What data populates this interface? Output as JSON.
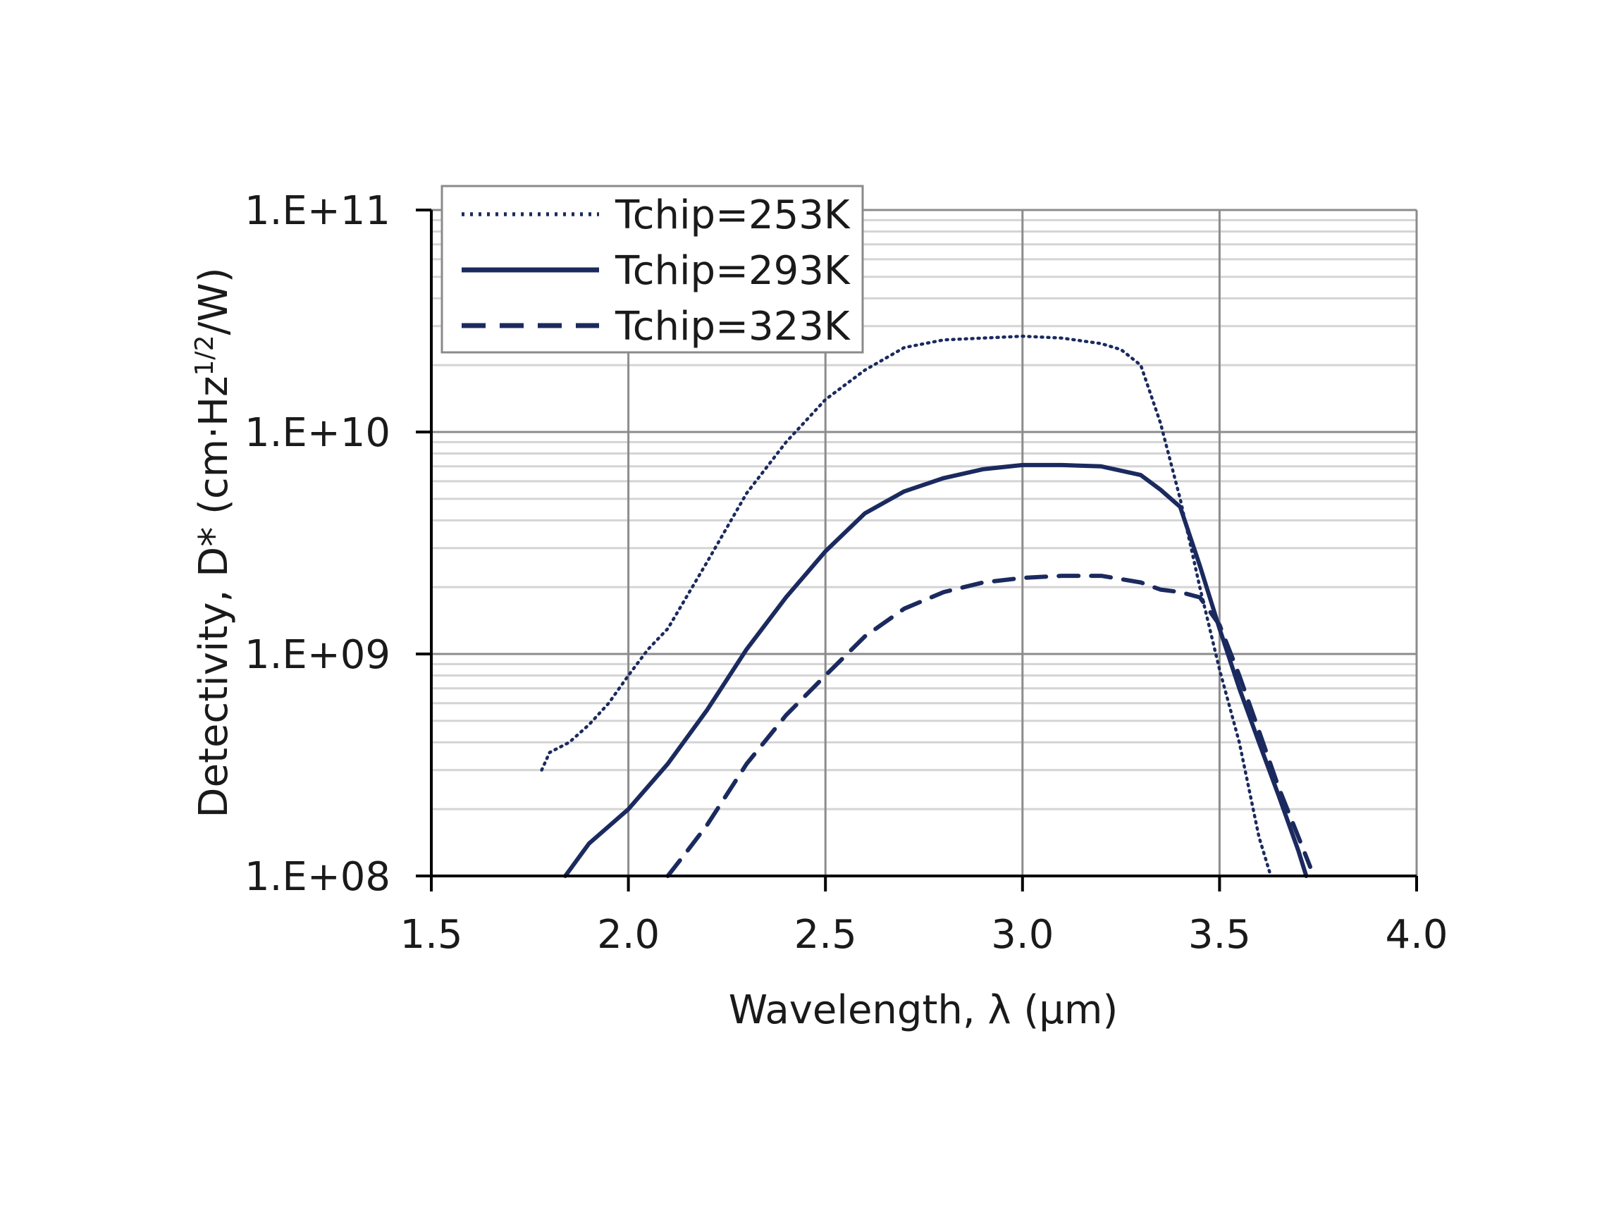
{
  "chart_data": {
    "type": "line",
    "title": "",
    "xlabel": "Wavelength, λ (μm)",
    "ylabel_main": "Detectivity, D* (cm·Hz",
    "ylabel_sup": "1/2",
    "ylabel_end": "/W)",
    "x_scale": "linear",
    "y_scale": "log",
    "xlim": [
      1.5,
      4.0
    ],
    "ylim": [
      100000000.0,
      100000000000.0
    ],
    "xticks": [
      1.5,
      2.0,
      2.5,
      3.0,
      3.5,
      4.0
    ],
    "xtick_labels": [
      "1.5",
      "2.0",
      "2.5",
      "3.0",
      "3.5",
      "4.0"
    ],
    "yticks": [
      100000000.0,
      1000000000.0,
      10000000000.0,
      100000000000.0
    ],
    "ytick_labels": [
      "1.E+08",
      "1.E+09",
      "1.E+10",
      "1.E+11"
    ],
    "grid": true,
    "legend_position": "top-left",
    "line_color": "#1b2a5e",
    "series": [
      {
        "name": "Tchip=253K",
        "style": "dotted",
        "x": [
          1.78,
          1.8,
          1.85,
          1.9,
          1.95,
          2.0,
          2.05,
          2.1,
          2.2,
          2.3,
          2.4,
          2.5,
          2.6,
          2.7,
          2.8,
          2.9,
          3.0,
          3.1,
          3.2,
          3.25,
          3.3,
          3.35,
          3.4,
          3.45,
          3.5,
          3.55,
          3.6,
          3.63
        ],
        "y": [
          300000000.0,
          360000000.0,
          400000000.0,
          480000000.0,
          600000000.0,
          800000000.0,
          1050000000.0,
          1300000000.0,
          2600000000.0,
          5300000000.0,
          9000000000.0,
          14000000000.0,
          19000000000.0,
          24000000000.0,
          26000000000.0,
          26500000000.0,
          27000000000.0,
          26500000000.0,
          25000000000.0,
          23500000000.0,
          20000000000.0,
          11000000000.0,
          5000000000.0,
          2000000000.0,
          850000000.0,
          400000000.0,
          150000000.0,
          100000000.0
        ]
      },
      {
        "name": "Tchip=293K",
        "style": "solid",
        "x": [
          1.84,
          1.9,
          2.0,
          2.1,
          2.2,
          2.3,
          2.4,
          2.5,
          2.6,
          2.7,
          2.8,
          2.9,
          3.0,
          3.1,
          3.2,
          3.3,
          3.35,
          3.4,
          3.45,
          3.5,
          3.55,
          3.6,
          3.65,
          3.7,
          3.72
        ],
        "y": [
          100000000.0,
          140000000.0,
          200000000.0,
          320000000.0,
          560000000.0,
          1050000000.0,
          1800000000.0,
          2900000000.0,
          4300000000.0,
          5400000000.0,
          6200000000.0,
          6800000000.0,
          7100000000.0,
          7100000000.0,
          7000000000.0,
          6400000000.0,
          5500000000.0,
          4600000000.0,
          2500000000.0,
          1300000000.0,
          700000000.0,
          400000000.0,
          230000000.0,
          130000000.0,
          100000000.0
        ]
      },
      {
        "name": "Tchip=323K",
        "style": "dashed",
        "x": [
          2.1,
          2.15,
          2.2,
          2.3,
          2.4,
          2.5,
          2.6,
          2.7,
          2.8,
          2.9,
          3.0,
          3.1,
          3.2,
          3.3,
          3.35,
          3.4,
          3.45,
          3.5,
          3.55,
          3.6,
          3.65,
          3.7,
          3.73
        ],
        "y": [
          100000000.0,
          130000000.0,
          170000000.0,
          320000000.0,
          530000000.0,
          800000000.0,
          1200000000.0,
          1600000000.0,
          1900000000.0,
          2100000000.0,
          2200000000.0,
          2250000000.0,
          2250000000.0,
          2100000000.0,
          1950000000.0,
          1900000000.0,
          1800000000.0,
          1350000000.0,
          800000000.0,
          450000000.0,
          250000000.0,
          150000000.0,
          110000000.0
        ]
      }
    ]
  }
}
